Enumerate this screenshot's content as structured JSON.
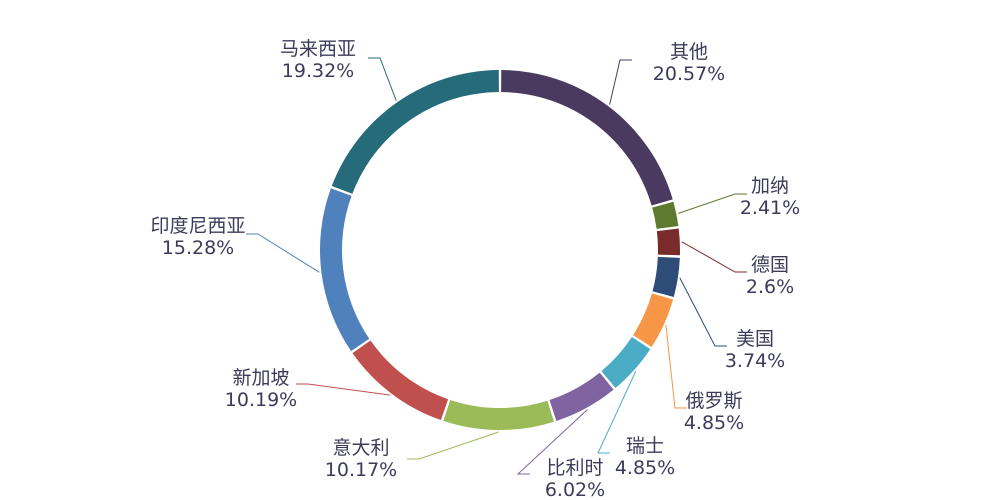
{
  "chart_data": {
    "type": "pie",
    "style": "donut",
    "grid": false,
    "legend": "none",
    "unit": "%",
    "slices": [
      {
        "label": "其他",
        "value": 20.57,
        "value_label": "20.57%",
        "color": "#4b3a60"
      },
      {
        "label": "加纳",
        "value": 2.41,
        "value_label": "2.41%",
        "color": "#5e7a2e"
      },
      {
        "label": "德国",
        "value": 2.6,
        "value_label": "2.6%",
        "color": "#792b2b"
      },
      {
        "label": "美国",
        "value": 3.74,
        "value_label": "3.74%",
        "color": "#2d4d78"
      },
      {
        "label": "俄罗斯",
        "value": 4.85,
        "value_label": "4.85%",
        "color": "#f79646"
      },
      {
        "label": "瑞士",
        "value": 4.85,
        "value_label": "4.85%",
        "color": "#4bacc6"
      },
      {
        "label": "比利时",
        "value": 6.02,
        "value_label": "6.02%",
        "color": "#8064a2"
      },
      {
        "label": "意大利",
        "value": 10.17,
        "value_label": "10.17%",
        "color": "#9bbb59"
      },
      {
        "label": "新加坡",
        "value": 10.19,
        "value_label": "10.19%",
        "color": "#c0504d"
      },
      {
        "label": "印度尼西亚",
        "value": 15.28,
        "value_label": "15.28%",
        "color": "#4f81bd"
      },
      {
        "label": "马来西亚",
        "value": 19.32,
        "value_label": "19.32%",
        "color": "#256b7a"
      }
    ]
  }
}
